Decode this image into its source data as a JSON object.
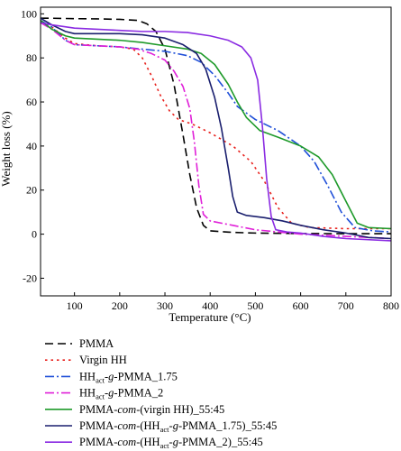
{
  "chart_data": {
    "type": "line",
    "xlabel": "Temperature (°C)",
    "ylabel": "Weight loss (%)",
    "xlim": [
      25,
      800
    ],
    "ylim": [
      -28,
      103
    ],
    "x_ticks": [
      100,
      200,
      300,
      400,
      500,
      600,
      700,
      800
    ],
    "y_ticks": [
      -20,
      0,
      20,
      40,
      60,
      80,
      100
    ],
    "legend_position": "below-plot",
    "grid": false,
    "series": [
      {
        "name": "PMMA",
        "color": "#000000",
        "dash": "9 5",
        "label_parts": [
          {
            "t": "PMMA"
          }
        ],
        "points": [
          [
            25,
            98
          ],
          [
            50,
            98
          ],
          [
            100,
            97.8
          ],
          [
            150,
            97.7
          ],
          [
            200,
            97.5
          ],
          [
            240,
            97
          ],
          [
            260,
            95.5
          ],
          [
            280,
            92
          ],
          [
            300,
            84
          ],
          [
            320,
            68
          ],
          [
            340,
            45
          ],
          [
            355,
            27
          ],
          [
            370,
            12
          ],
          [
            385,
            4
          ],
          [
            400,
            1.5
          ],
          [
            450,
            0.8
          ],
          [
            500,
            0.5
          ],
          [
            600,
            0.3
          ],
          [
            700,
            0.2
          ],
          [
            800,
            0.2
          ]
        ]
      },
      {
        "name": "Virgin HH",
        "color": "#e8201c",
        "dash": "2.5 4",
        "label_parts": [
          {
            "t": "Virgin HH"
          }
        ],
        "points": [
          [
            25,
            96
          ],
          [
            50,
            94
          ],
          [
            80,
            89
          ],
          [
            100,
            86.5
          ],
          [
            150,
            85.5
          ],
          [
            200,
            85
          ],
          [
            230,
            84
          ],
          [
            250,
            80
          ],
          [
            270,
            72
          ],
          [
            290,
            63
          ],
          [
            310,
            56
          ],
          [
            330,
            52
          ],
          [
            360,
            50
          ],
          [
            400,
            46
          ],
          [
            450,
            40
          ],
          [
            490,
            33
          ],
          [
            520,
            24
          ],
          [
            550,
            12
          ],
          [
            580,
            5
          ],
          [
            620,
            3
          ],
          [
            700,
            2.5
          ],
          [
            800,
            2.5
          ]
        ]
      },
      {
        "name": "HH_act-g-PMMA_1.75",
        "color": "#1f4fd8",
        "dash": "10 3 2 3",
        "label_parts": [
          {
            "t": "HH"
          },
          {
            "t": "act",
            "sub": true
          },
          {
            "t": "-"
          },
          {
            "t": "g",
            "i": true
          },
          {
            "t": "-PMMA_1.75"
          }
        ],
        "points": [
          [
            25,
            97
          ],
          [
            50,
            94
          ],
          [
            80,
            88
          ],
          [
            100,
            86
          ],
          [
            150,
            85.5
          ],
          [
            200,
            85
          ],
          [
            250,
            84
          ],
          [
            300,
            83
          ],
          [
            350,
            81
          ],
          [
            380,
            78
          ],
          [
            410,
            72
          ],
          [
            440,
            64
          ],
          [
            460,
            58
          ],
          [
            500,
            52
          ],
          [
            550,
            47
          ],
          [
            600,
            40
          ],
          [
            630,
            33
          ],
          [
            660,
            22
          ],
          [
            690,
            10
          ],
          [
            720,
            3
          ],
          [
            760,
            1.5
          ],
          [
            800,
            1
          ]
        ]
      },
      {
        "name": "HH_act-g-PMMA_2",
        "color": "#e020d8",
        "dash": "10 3 2 3",
        "label_parts": [
          {
            "t": "HH"
          },
          {
            "t": "act",
            "sub": true
          },
          {
            "t": "-"
          },
          {
            "t": "g",
            "i": true
          },
          {
            "t": "-PMMA_2"
          }
        ],
        "points": [
          [
            25,
            96
          ],
          [
            50,
            93
          ],
          [
            80,
            88
          ],
          [
            100,
            86
          ],
          [
            150,
            85.5
          ],
          [
            200,
            85
          ],
          [
            240,
            84
          ],
          [
            270,
            82
          ],
          [
            300,
            79
          ],
          [
            320,
            74
          ],
          [
            340,
            67
          ],
          [
            355,
            57
          ],
          [
            365,
            42
          ],
          [
            375,
            22
          ],
          [
            385,
            9
          ],
          [
            400,
            6
          ],
          [
            450,
            4
          ],
          [
            500,
            2
          ],
          [
            550,
            1
          ],
          [
            600,
            0
          ],
          [
            700,
            -1
          ],
          [
            800,
            -2
          ]
        ]
      },
      {
        "name": "PMMA-com-(virgin HH)_55:45",
        "color": "#1e9a2a",
        "dash": "",
        "label_parts": [
          {
            "t": "PMMA-"
          },
          {
            "t": "com",
            "i": true
          },
          {
            "t": "-(virgin HH)_55:45"
          }
        ],
        "points": [
          [
            25,
            97
          ],
          [
            50,
            93
          ],
          [
            80,
            90
          ],
          [
            100,
            89
          ],
          [
            150,
            88.5
          ],
          [
            200,
            88
          ],
          [
            250,
            87
          ],
          [
            300,
            85.5
          ],
          [
            350,
            84
          ],
          [
            380,
            82
          ],
          [
            410,
            77
          ],
          [
            440,
            68
          ],
          [
            460,
            60
          ],
          [
            480,
            53
          ],
          [
            510,
            47
          ],
          [
            550,
            44
          ],
          [
            600,
            40
          ],
          [
            640,
            35
          ],
          [
            670,
            27
          ],
          [
            700,
            15
          ],
          [
            725,
            5
          ],
          [
            750,
            3
          ],
          [
            800,
            2.5
          ]
        ]
      },
      {
        "name": "PMMA-com-(HH_act-g-PMMA_1.75)_55:45",
        "color": "#1a1f6e",
        "dash": "",
        "label_parts": [
          {
            "t": "PMMA-"
          },
          {
            "t": "com",
            "i": true
          },
          {
            "t": "-(HH"
          },
          {
            "t": "act",
            "sub": true
          },
          {
            "t": "-"
          },
          {
            "t": "g",
            "i": true
          },
          {
            "t": "-PMMA_1.75)_55:45"
          }
        ],
        "points": [
          [
            25,
            98
          ],
          [
            50,
            95
          ],
          [
            80,
            92
          ],
          [
            100,
            91
          ],
          [
            150,
            91
          ],
          [
            200,
            91
          ],
          [
            250,
            90.5
          ],
          [
            300,
            89
          ],
          [
            340,
            86
          ],
          [
            370,
            82
          ],
          [
            390,
            75
          ],
          [
            410,
            62
          ],
          [
            425,
            48
          ],
          [
            440,
            30
          ],
          [
            450,
            17
          ],
          [
            460,
            10
          ],
          [
            480,
            8.5
          ],
          [
            520,
            7.5
          ],
          [
            560,
            6
          ],
          [
            600,
            4
          ],
          [
            650,
            2
          ],
          [
            700,
            0.5
          ],
          [
            750,
            -1.5
          ],
          [
            800,
            -2
          ]
        ]
      },
      {
        "name": "PMMA-com-(HH_act-g-PMMA_2)_55:45",
        "color": "#8a2be2",
        "dash": "",
        "label_parts": [
          {
            "t": "PMMA-"
          },
          {
            "t": "com",
            "i": true
          },
          {
            "t": "-(HH"
          },
          {
            "t": "act",
            "sub": true
          },
          {
            "t": "-"
          },
          {
            "t": "g",
            "i": true
          },
          {
            "t": "-PMMA_2)_55:45"
          }
        ],
        "points": [
          [
            25,
            96
          ],
          [
            50,
            95
          ],
          [
            100,
            93.5
          ],
          [
            150,
            93
          ],
          [
            200,
            92.5
          ],
          [
            250,
            92
          ],
          [
            300,
            92
          ],
          [
            350,
            91.5
          ],
          [
            400,
            90
          ],
          [
            440,
            88
          ],
          [
            470,
            85
          ],
          [
            490,
            80
          ],
          [
            505,
            70
          ],
          [
            515,
            50
          ],
          [
            525,
            25
          ],
          [
            535,
            8
          ],
          [
            545,
            2
          ],
          [
            570,
            1
          ],
          [
            600,
            0.5
          ],
          [
            650,
            -1
          ],
          [
            700,
            -2
          ],
          [
            800,
            -3
          ]
        ]
      }
    ]
  }
}
